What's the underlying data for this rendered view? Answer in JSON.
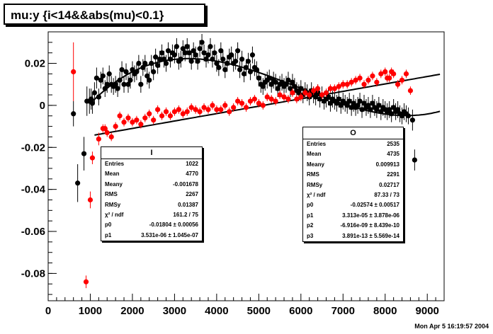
{
  "title": "mu:y {i<14&&abs(mu)<0.1}",
  "timestamp": "Mon Apr  5 16:19:57 2004",
  "stats_I": {
    "name": "I",
    "rows": [
      {
        "k": "Entries",
        "v": "1022"
      },
      {
        "k": "Mean",
        "v": "4770"
      },
      {
        "k": "Meany",
        "v": "-0.001678"
      },
      {
        "k": "RMS",
        "v": "2267"
      },
      {
        "k": "RMSy",
        "v": "0.01387"
      },
      {
        "k": "χ² / ndf",
        "v": "161.2 / 75"
      },
      {
        "k": "p0",
        "v": "-0.01804 ± 0.00056"
      },
      {
        "k": "p1",
        "v": "3.531e-06 ± 1.045e-07"
      }
    ]
  },
  "stats_O": {
    "name": "O",
    "rows": [
      {
        "k": "Entries",
        "v": "2535"
      },
      {
        "k": "Mean",
        "v": "4735"
      },
      {
        "k": "Meany",
        "v": "0.009913"
      },
      {
        "k": "RMS",
        "v": "2291"
      },
      {
        "k": "RMSy",
        "v": "0.02717"
      },
      {
        "k": "χ² / ndf",
        "v": "87.33 / 73"
      },
      {
        "k": "p0",
        "v": "-0.02574 ± 0.00517"
      },
      {
        "k": "p1",
        "v": "3.313e-05 ± 3.878e-06"
      },
      {
        "k": "p2",
        "v": "-6.916e-09 ± 8.439e-10"
      },
      {
        "k": "p3",
        "v": "3.891e-13 ± 5.569e-14"
      }
    ]
  },
  "chart_data": {
    "type": "scatter",
    "xlim": [
      0,
      9400
    ],
    "ylim": [
      -0.093,
      0.035
    ],
    "xticks": [
      0,
      1000,
      2000,
      3000,
      4000,
      5000,
      6000,
      7000,
      8000,
      9000
    ],
    "yticks": [
      -0.08,
      -0.06,
      -0.04,
      -0.02,
      0,
      0.02
    ],
    "xtick_labels": [
      "0",
      "1000",
      "2000",
      "3000",
      "4000",
      "5000",
      "6000",
      "7000",
      "8000",
      "9000"
    ],
    "ytick_labels": [
      "-0.08",
      "-0.06",
      "-0.04",
      "-0.02",
      "0",
      "0.02"
    ],
    "grid": true,
    "series": [
      {
        "name": "O",
        "color": "#000000",
        "fit": {
          "p": [
            -0.02574,
            3.313e-05,
            -6.916e-09,
            3.891e-13
          ],
          "xrange": [
            1000,
            9300
          ]
        },
        "x": [
          600,
          700,
          850,
          920,
          980,
          1020,
          1050,
          1100,
          1150,
          1200,
          1250,
          1300,
          1350,
          1400,
          1450,
          1500,
          1550,
          1600,
          1650,
          1700,
          1750,
          1800,
          1850,
          1900,
          1950,
          2000,
          2050,
          2100,
          2150,
          2200,
          2250,
          2300,
          2350,
          2400,
          2450,
          2500,
          2550,
          2600,
          2650,
          2700,
          2750,
          2800,
          2850,
          2900,
          2950,
          3000,
          3050,
          3100,
          3150,
          3200,
          3250,
          3300,
          3350,
          3400,
          3450,
          3500,
          3550,
          3600,
          3650,
          3700,
          3750,
          3800,
          3850,
          3900,
          3950,
          4000,
          4050,
          4100,
          4150,
          4200,
          4250,
          4300,
          4350,
          4400,
          4450,
          4500,
          4550,
          4600,
          4650,
          4700,
          4750,
          4800,
          4850,
          4900,
          4950,
          5000,
          5050,
          5100,
          5150,
          5200,
          5250,
          5300,
          5350,
          5400,
          5450,
          5500,
          5550,
          5600,
          5650,
          5700,
          5750,
          5800,
          5850,
          5900,
          5950,
          6000,
          6050,
          6100,
          6150,
          6200,
          6250,
          6300,
          6350,
          6400,
          6450,
          6500,
          6550,
          6600,
          6650,
          6700,
          6750,
          6800,
          6850,
          6900,
          6950,
          7000,
          7050,
          7100,
          7150,
          7200,
          7250,
          7300,
          7350,
          7400,
          7450,
          7500,
          7550,
          7600,
          7650,
          7700,
          7750,
          7800,
          7850,
          7900,
          7950,
          8000,
          8050,
          8100,
          8150,
          8200,
          8250,
          8300,
          8350,
          8400,
          8450,
          8500,
          8550,
          8650,
          8700
        ],
        "y": [
          -0.004,
          -0.037,
          -0.023,
          0.002,
          0.002,
          0.003,
          0.001,
          0.006,
          0.013,
          0.004,
          0.012,
          0.014,
          0.008,
          0.01,
          0.015,
          0.01,
          0.009,
          0.01,
          0.008,
          0.012,
          0.017,
          0.01,
          0.016,
          0.01,
          0.012,
          0.017,
          0.015,
          0.016,
          0.02,
          0.01,
          0.018,
          0.02,
          0.014,
          0.012,
          0.02,
          0.016,
          0.023,
          0.019,
          0.022,
          0.025,
          0.022,
          0.02,
          0.026,
          0.022,
          0.025,
          0.024,
          0.028,
          0.021,
          0.022,
          0.027,
          0.025,
          0.028,
          0.025,
          0.021,
          0.026,
          0.024,
          0.021,
          0.027,
          0.03,
          0.025,
          0.022,
          0.024,
          0.028,
          0.022,
          0.025,
          0.02,
          0.018,
          0.026,
          0.022,
          0.017,
          0.02,
          0.023,
          0.024,
          0.02,
          0.021,
          0.026,
          0.017,
          0.022,
          0.015,
          0.018,
          0.021,
          0.016,
          0.024,
          0.018,
          0.017,
          0.013,
          0.01,
          0.009,
          0.011,
          0.012,
          0.013,
          0.01,
          0.012,
          0.011,
          0.008,
          0.01,
          0.011,
          0.009,
          0.01,
          0.012,
          0.008,
          0.011,
          0.009,
          0.007,
          0.006,
          0.008,
          0.005,
          0.007,
          0.006,
          0.004,
          0.007,
          0.005,
          0.004,
          0.006,
          0.003,
          0.005,
          0.002,
          0.003,
          0.004,
          0.001,
          0.003,
          0.002,
          0.001,
          0.003,
          0.0,
          0.002,
          0.001,
          0.0,
          0.002,
          -0.001,
          0.001,
          -0.001,
          0.0,
          0.002,
          -0.002,
          0.001,
          -0.001,
          0.0,
          -0.002,
          0.001,
          -0.001,
          -0.002,
          0.0,
          -0.003,
          -0.001,
          -0.002,
          -0.003,
          -0.002,
          -0.004,
          -0.001,
          -0.003,
          -0.002,
          -0.004,
          -0.005,
          -0.003,
          -0.004,
          -0.005,
          -0.007,
          -0.026
        ],
        "err": [
          0.006,
          0.009,
          0.008,
          0.007,
          0.006,
          0.005,
          0.005,
          0.005,
          0.005,
          0.004,
          0.004,
          0.004,
          0.004,
          0.004,
          0.004,
          0.004,
          0.004,
          0.004,
          0.004,
          0.004,
          0.004,
          0.004,
          0.004,
          0.004,
          0.004,
          0.004,
          0.004,
          0.004,
          0.004,
          0.004,
          0.004,
          0.004,
          0.004,
          0.004,
          0.004,
          0.004,
          0.004,
          0.004,
          0.004,
          0.004,
          0.004,
          0.004,
          0.004,
          0.004,
          0.004,
          0.004,
          0.004,
          0.004,
          0.004,
          0.004,
          0.004,
          0.004,
          0.004,
          0.004,
          0.004,
          0.004,
          0.004,
          0.004,
          0.004,
          0.004,
          0.004,
          0.004,
          0.004,
          0.004,
          0.004,
          0.004,
          0.004,
          0.004,
          0.004,
          0.004,
          0.004,
          0.004,
          0.004,
          0.004,
          0.004,
          0.004,
          0.004,
          0.004,
          0.004,
          0.004,
          0.004,
          0.004,
          0.004,
          0.004,
          0.004,
          0.004,
          0.004,
          0.004,
          0.004,
          0.004,
          0.004,
          0.004,
          0.004,
          0.004,
          0.004,
          0.004,
          0.004,
          0.004,
          0.004,
          0.004,
          0.004,
          0.004,
          0.004,
          0.004,
          0.004,
          0.004,
          0.004,
          0.004,
          0.004,
          0.004,
          0.004,
          0.004,
          0.004,
          0.004,
          0.004,
          0.004,
          0.004,
          0.004,
          0.004,
          0.004,
          0.004,
          0.004,
          0.004,
          0.004,
          0.004,
          0.004,
          0.004,
          0.004,
          0.004,
          0.004,
          0.004,
          0.004,
          0.004,
          0.004,
          0.004,
          0.004,
          0.004,
          0.004,
          0.004,
          0.004,
          0.004,
          0.004,
          0.004,
          0.004,
          0.004,
          0.004,
          0.004,
          0.004,
          0.004,
          0.004,
          0.004,
          0.004,
          0.004,
          0.004,
          0.004,
          0.004,
          0.004,
          0.005,
          0.005
        ]
      },
      {
        "name": "I",
        "color": "#ff0000",
        "fit": {
          "p": [
            -0.01804,
            3.531e-06
          ],
          "xrange": [
            1100,
            9300
          ]
        },
        "x": [
          600,
          900,
          1000,
          1050,
          1200,
          1300,
          1350,
          1400,
          1500,
          1600,
          1700,
          1800,
          1900,
          2000,
          2100,
          2200,
          2300,
          2400,
          2500,
          2600,
          2700,
          2800,
          2900,
          3000,
          3100,
          3200,
          3300,
          3400,
          3500,
          3600,
          3700,
          3800,
          3900,
          4000,
          4100,
          4200,
          4300,
          4400,
          4500,
          4600,
          4700,
          4800,
          4900,
          5000,
          5100,
          5200,
          5300,
          5400,
          5500,
          5600,
          5700,
          5800,
          5900,
          6000,
          6100,
          6200,
          6300,
          6400,
          6500,
          6600,
          6700,
          6800,
          6900,
          7000,
          7100,
          7200,
          7300,
          7400,
          7500,
          7600,
          7700,
          7800,
          7900,
          8000,
          8050,
          8100,
          8150,
          8200,
          8300,
          8400,
          8500,
          8600
        ],
        "y": [
          0.016,
          -0.084,
          -0.045,
          -0.025,
          -0.016,
          -0.011,
          -0.011,
          -0.013,
          -0.015,
          -0.01,
          -0.005,
          -0.008,
          -0.006,
          -0.008,
          -0.007,
          -0.009,
          -0.006,
          -0.004,
          -0.007,
          -0.002,
          -0.005,
          -0.003,
          -0.005,
          -0.003,
          -0.002,
          -0.004,
          -0.003,
          -0.001,
          -0.002,
          -0.003,
          -0.001,
          -0.002,
          0.0,
          -0.002,
          -0.002,
          0.0,
          -0.003,
          -0.001,
          0.002,
          0.001,
          -0.001,
          0.002,
          0.003,
          0.001,
          0.0,
          0.004,
          0.003,
          0.002,
          0.005,
          0.004,
          0.003,
          0.006,
          0.003,
          0.004,
          0.006,
          0.005,
          0.007,
          0.008,
          0.005,
          0.006,
          0.008,
          0.008,
          0.009,
          0.01,
          0.01,
          0.011,
          0.012,
          0.013,
          0.01,
          0.012,
          0.014,
          0.011,
          0.015,
          0.016,
          0.013,
          0.013,
          0.016,
          0.015,
          0.01,
          0.012,
          0.015,
          0.007
        ],
        "err": [
          0.014,
          0.003,
          0.004,
          0.003,
          0.003,
          0.002,
          0.002,
          0.002,
          0.002,
          0.002,
          0.002,
          0.002,
          0.002,
          0.002,
          0.002,
          0.002,
          0.002,
          0.002,
          0.002,
          0.002,
          0.002,
          0.002,
          0.002,
          0.002,
          0.002,
          0.002,
          0.002,
          0.002,
          0.002,
          0.002,
          0.002,
          0.002,
          0.002,
          0.002,
          0.002,
          0.002,
          0.002,
          0.002,
          0.002,
          0.002,
          0.002,
          0.002,
          0.002,
          0.002,
          0.002,
          0.002,
          0.002,
          0.002,
          0.002,
          0.002,
          0.002,
          0.002,
          0.002,
          0.002,
          0.002,
          0.002,
          0.002,
          0.002,
          0.002,
          0.002,
          0.002,
          0.002,
          0.002,
          0.002,
          0.002,
          0.002,
          0.002,
          0.002,
          0.002,
          0.002,
          0.002,
          0.002,
          0.002,
          0.002,
          0.002,
          0.002,
          0.002,
          0.002,
          0.002,
          0.002,
          0.002,
          0.002
        ]
      }
    ]
  }
}
